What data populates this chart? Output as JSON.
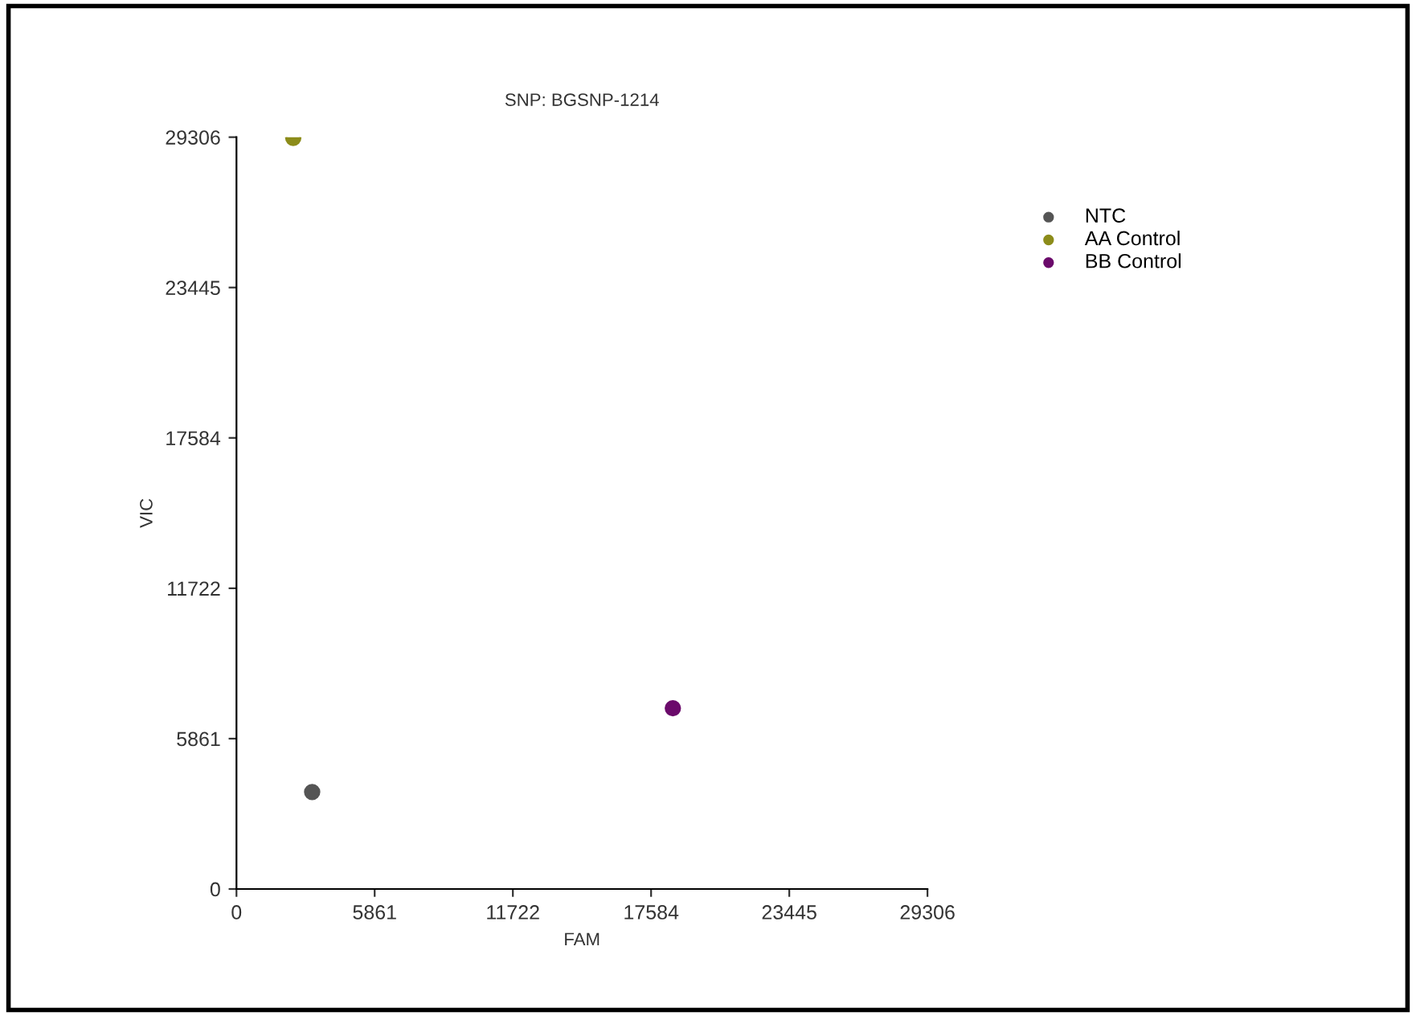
{
  "chart_data": {
    "type": "scatter",
    "title": "SNP: BGSNP-1214",
    "xlabel": "FAM",
    "ylabel": "VIC",
    "series": [
      {
        "name": "NTC",
        "color": "#555555",
        "x": [
          3210
        ],
        "values": [
          3781
        ]
      },
      {
        "name": "AA Control",
        "color": "#8c8c1a",
        "x": [
          2408
        ],
        "values": [
          29280
        ]
      },
      {
        "name": "BB Control",
        "color": "#6b0a6b",
        "x": [
          18507
        ],
        "values": [
          7047
        ]
      }
    ],
    "xlim": [
      0,
      29306
    ],
    "ylim": [
      0,
      29306
    ],
    "xticks": [
      0,
      5861,
      11722,
      17584,
      23445,
      29306
    ],
    "yticks": [
      0,
      5861,
      11722,
      17584,
      23445,
      29306
    ],
    "grid": false,
    "legend": "top right",
    "marker": "circle"
  }
}
